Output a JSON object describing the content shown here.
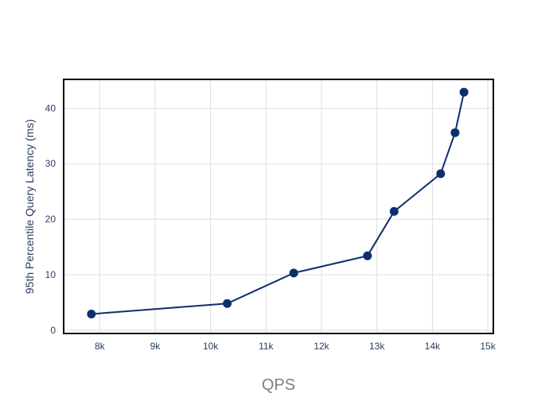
{
  "chart_data": {
    "type": "line",
    "xlabel": "QPS",
    "ylabel": "95th Percentile Query Latency (ms)",
    "xlim": [
      7350,
      15100
    ],
    "ylim": [
      -0.6,
      45.2
    ],
    "x_ticks": [
      8000,
      9000,
      10000,
      11000,
      12000,
      13000,
      14000,
      15000
    ],
    "x_tick_labels": [
      "8k",
      "9k",
      "10k",
      "11k",
      "12k",
      "13k",
      "14k",
      "15k"
    ],
    "y_ticks": [
      0,
      10,
      20,
      30,
      40
    ],
    "y_tick_labels": [
      "0",
      "10",
      "20",
      "30",
      "40"
    ],
    "grid": true,
    "legend": "none",
    "series": [
      {
        "color": "#0d2f6b",
        "x": [
          7850,
          10300,
          11500,
          12830,
          13310,
          14150,
          14410,
          14570
        ],
        "y": [
          2.9,
          4.8,
          10.3,
          13.4,
          21.4,
          28.2,
          35.6,
          42.9
        ]
      }
    ]
  }
}
